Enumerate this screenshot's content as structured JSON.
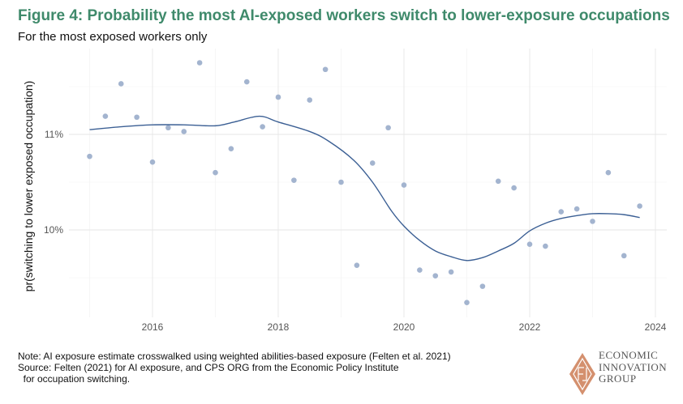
{
  "title": "Figure 4: Probability the most AI-exposed workers switch to lower-exposure occupations",
  "subtitle": "For the most exposed workers only",
  "notes": [
    "Note: AI exposure estimate crosswalked using weighted abilities-based exposure (Felten et al. 2021)",
    "Source: Felten (2021) for AI exposure, and CPS ORG from the Economic Policy Institute",
    "  for occupation switching."
  ],
  "logo": {
    "lines": [
      "ECONOMIC",
      "INNOVATION",
      "GROUP"
    ],
    "color": "#d4906e"
  },
  "chart_data": {
    "type": "scatter",
    "title": "",
    "xlabel": "",
    "ylabel": "pr(switching to lower exposed occupation)",
    "xlim": [
      2014.9,
      2024.1
    ],
    "ylim": [
      9.1,
      11.95
    ],
    "x_ticks": [
      2016,
      2018,
      2020,
      2022,
      2024
    ],
    "x_tick_labels": [
      "2016",
      "2018",
      "2020",
      "2022",
      "2024"
    ],
    "y_ticks": [
      10,
      11
    ],
    "y_tick_labels": [
      "10%",
      "11%"
    ],
    "grid": true,
    "point_color": "#a3b4cf",
    "line_color": "#3b5f94",
    "points": [
      [
        2015.0,
        10.77
      ],
      [
        2015.25,
        11.19
      ],
      [
        2015.5,
        11.53
      ],
      [
        2015.75,
        11.18
      ],
      [
        2016.0,
        10.71
      ],
      [
        2016.25,
        11.07
      ],
      [
        2016.5,
        11.03
      ],
      [
        2016.75,
        11.75
      ],
      [
        2017.0,
        10.6
      ],
      [
        2017.25,
        10.85
      ],
      [
        2017.5,
        11.55
      ],
      [
        2017.75,
        11.08
      ],
      [
        2018.0,
        11.39
      ],
      [
        2018.25,
        10.52
      ],
      [
        2018.5,
        11.36
      ],
      [
        2018.75,
        11.68
      ],
      [
        2019.0,
        10.5
      ],
      [
        2019.25,
        9.63
      ],
      [
        2019.5,
        10.7
      ],
      [
        2019.75,
        11.07
      ],
      [
        2020.0,
        10.47
      ],
      [
        2020.25,
        9.58
      ],
      [
        2020.5,
        9.52
      ],
      [
        2020.75,
        9.56
      ],
      [
        2021.0,
        9.24
      ],
      [
        2021.25,
        9.41
      ],
      [
        2021.5,
        10.51
      ],
      [
        2021.75,
        10.44
      ],
      [
        2022.0,
        9.85
      ],
      [
        2022.25,
        9.83
      ],
      [
        2022.5,
        10.19
      ],
      [
        2022.75,
        10.22
      ],
      [
        2023.0,
        10.09
      ],
      [
        2023.25,
        10.6
      ],
      [
        2023.5,
        9.73
      ],
      [
        2023.75,
        10.25
      ]
    ],
    "smooth": [
      [
        2015.0,
        11.05
      ],
      [
        2015.5,
        11.08
      ],
      [
        2016.0,
        11.1
      ],
      [
        2016.5,
        11.1
      ],
      [
        2017.0,
        11.09
      ],
      [
        2017.3,
        11.13
      ],
      [
        2017.7,
        11.19
      ],
      [
        2018.0,
        11.13
      ],
      [
        2018.5,
        11.03
      ],
      [
        2018.8,
        10.93
      ],
      [
        2019.2,
        10.73
      ],
      [
        2019.5,
        10.5
      ],
      [
        2019.8,
        10.2
      ],
      [
        2020.0,
        10.04
      ],
      [
        2020.25,
        9.89
      ],
      [
        2020.5,
        9.78
      ],
      [
        2020.75,
        9.72
      ],
      [
        2021.0,
        9.68
      ],
      [
        2021.25,
        9.71
      ],
      [
        2021.5,
        9.78
      ],
      [
        2021.75,
        9.86
      ],
      [
        2022.0,
        9.99
      ],
      [
        2022.25,
        10.07
      ],
      [
        2022.5,
        10.12
      ],
      [
        2022.75,
        10.15
      ],
      [
        2023.0,
        10.17
      ],
      [
        2023.25,
        10.17
      ],
      [
        2023.5,
        10.16
      ],
      [
        2023.75,
        10.13
      ]
    ]
  }
}
